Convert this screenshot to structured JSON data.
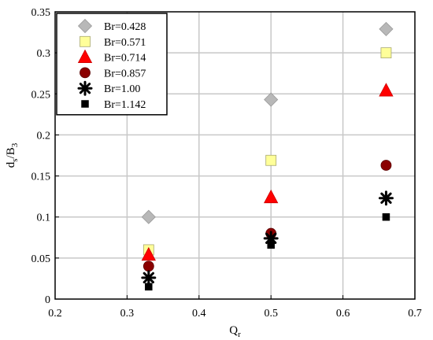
{
  "chart_data": {
    "type": "scatter",
    "title": "",
    "xlabel": {
      "main": "Q",
      "sub": "r"
    },
    "ylabel": {
      "main": "d",
      "sub1": "s",
      "mid": "/B",
      "sub2": "3"
    },
    "xlim": [
      0.2,
      0.7
    ],
    "ylim": [
      0,
      0.35
    ],
    "xticks": [
      0.2,
      0.3,
      0.4,
      0.5,
      0.6,
      0.7
    ],
    "yticks": [
      0,
      0.05,
      0.1,
      0.15,
      0.2,
      0.25,
      0.3,
      0.35
    ],
    "xtick_labels": [
      "0.2",
      "0.3",
      "0.4",
      "0.5",
      "0.6",
      "0.7"
    ],
    "ytick_labels": [
      "0",
      "0.05",
      "0.1",
      "0.15",
      "0.2",
      "0.25",
      "0.3",
      "0.35"
    ],
    "grid": true,
    "legend_position": "top-left",
    "series": [
      {
        "name": "Br=0.428",
        "marker": "diamond",
        "color": "#b8b8b8",
        "stroke": "#9a9a9a",
        "x": [
          0.33,
          0.5,
          0.66
        ],
        "y": [
          0.1,
          0.243,
          0.329
        ]
      },
      {
        "name": "Br=0.571",
        "marker": "square",
        "color": "#ffff99",
        "stroke": "#a8a870",
        "x": [
          0.33,
          0.5,
          0.66
        ],
        "y": [
          0.06,
          0.169,
          0.3
        ]
      },
      {
        "name": "Br=0.714",
        "marker": "triangle",
        "color": "#ff0000",
        "stroke": "#cc0000",
        "x": [
          0.33,
          0.5,
          0.66
        ],
        "y": [
          0.054,
          0.124,
          0.254
        ]
      },
      {
        "name": "Br=0.857",
        "marker": "circle",
        "color": "#8b0000",
        "stroke": "#5a0000",
        "x": [
          0.33,
          0.5,
          0.66
        ],
        "y": [
          0.04,
          0.08,
          0.163
        ]
      },
      {
        "name": "Br=1.00",
        "marker": "asterisk",
        "color": "#000000",
        "stroke": "#000000",
        "x": [
          0.33,
          0.5,
          0.66
        ],
        "y": [
          0.026,
          0.074,
          0.123
        ]
      },
      {
        "name": "Br=1.142",
        "marker": "small-square",
        "color": "#000000",
        "stroke": "#000000",
        "x": [
          0.33,
          0.5,
          0.66
        ],
        "y": [
          0.015,
          0.066,
          0.1
        ]
      }
    ]
  }
}
